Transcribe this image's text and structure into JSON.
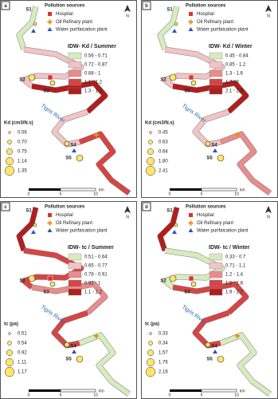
{
  "sources": {
    "title": "Pollution sources",
    "hospital": "Hospital",
    "oil": "Oil Refinary plant",
    "water": "Water purifaication plant"
  },
  "river_label": "Tigris River",
  "stations": [
    "S1",
    "S2",
    "S3",
    "S4",
    "S5"
  ],
  "scale": {
    "zero": "0",
    "five": "5",
    "ten": "10",
    "unit": "km"
  },
  "north": "N",
  "panels": [
    {
      "label": "a",
      "legend_title": "IDW- Kd / Summer",
      "classes": [
        {
          "range": "0.56 - 0.71",
          "color": "#d8ebbf"
        },
        {
          "range": "0.72 - 0.87",
          "color": "#f2c4c4"
        },
        {
          "range": "0.88 - 1",
          "color": "#e98c8c"
        },
        {
          "range": "1.1 - 1.2",
          "color": "#d64545"
        },
        {
          "range": "1.3 - 1.3",
          "color": "#b01e1e"
        }
      ],
      "river_colors": [
        "#d8ebbf",
        "#f2c4c4",
        "#b01e1e",
        "#f2c4c4",
        "#d64545"
      ],
      "size_title": "Kd (cm3/N.s)",
      "size_values": [
        "0.56",
        "0.70",
        "0.75",
        "1.14",
        "1.35"
      ]
    },
    {
      "label": "b",
      "legend_title": "IDW-  Kd / Winter",
      "classes": [
        {
          "range": "0.45 - 0.84",
          "color": "#d8ebbf"
        },
        {
          "range": "0.85 - 1.2",
          "color": "#f2c4c4"
        },
        {
          "range": "1.3 - 1.6",
          "color": "#e98c8c"
        },
        {
          "range": "1.7 - 2",
          "color": "#d64545"
        },
        {
          "range": "2.1 - 2.4",
          "color": "#b01e1e"
        }
      ],
      "river_colors": [
        "#d8ebbf",
        "#f2c4c4",
        "#b01e1e",
        "#f2c4c4",
        "#e98c8c"
      ],
      "size_title": "Kd  (cm3/N.s)",
      "size_values": [
        "0.45",
        "0.63",
        "0.64",
        "1.80",
        "2.41"
      ]
    },
    {
      "label": "c",
      "legend_title": "IDW- tc / Summer",
      "classes": [
        {
          "range": "0.51 - 0.64",
          "color": "#d8ebbf"
        },
        {
          "range": "0.65 - 0.77",
          "color": "#f2c4c4"
        },
        {
          "range": "0.78 - 0.91",
          "color": "#e98c8c"
        },
        {
          "range": "0.92 - 1",
          "color": "#d64545"
        },
        {
          "range": "1.1 - 1.2",
          "color": "#b01e1e"
        }
      ],
      "river_colors": [
        "#b01e1e",
        "#d64545",
        "#e98c8c",
        "#d64545",
        "#d8ebbf"
      ],
      "size_title": "tc (pa)",
      "size_values": [
        "0.51",
        "0.54",
        "0.92",
        "1.11",
        "1.17"
      ]
    },
    {
      "label": "d",
      "legend_title": "IDW- tc / Winter",
      "classes": [
        {
          "range": "0.33 - 0.7",
          "color": "#d8ebbf"
        },
        {
          "range": "0.71 - 1.1",
          "color": "#f2c4c4"
        },
        {
          "range": "1.2 - 1.4",
          "color": "#e98c8c"
        },
        {
          "range": "1.5 - 1.8",
          "color": "#d64545"
        },
        {
          "range": "1.9 - 2.2",
          "color": "#b01e1e"
        }
      ],
      "river_colors": [
        "#b01e1e",
        "#d8ebbf",
        "#d64545",
        "#d64545",
        "#d8ebbf"
      ],
      "size_title": "tc (pa)",
      "size_values": [
        "0.33",
        "0.34",
        "1.57",
        "1.76",
        "2.16"
      ]
    }
  ]
}
